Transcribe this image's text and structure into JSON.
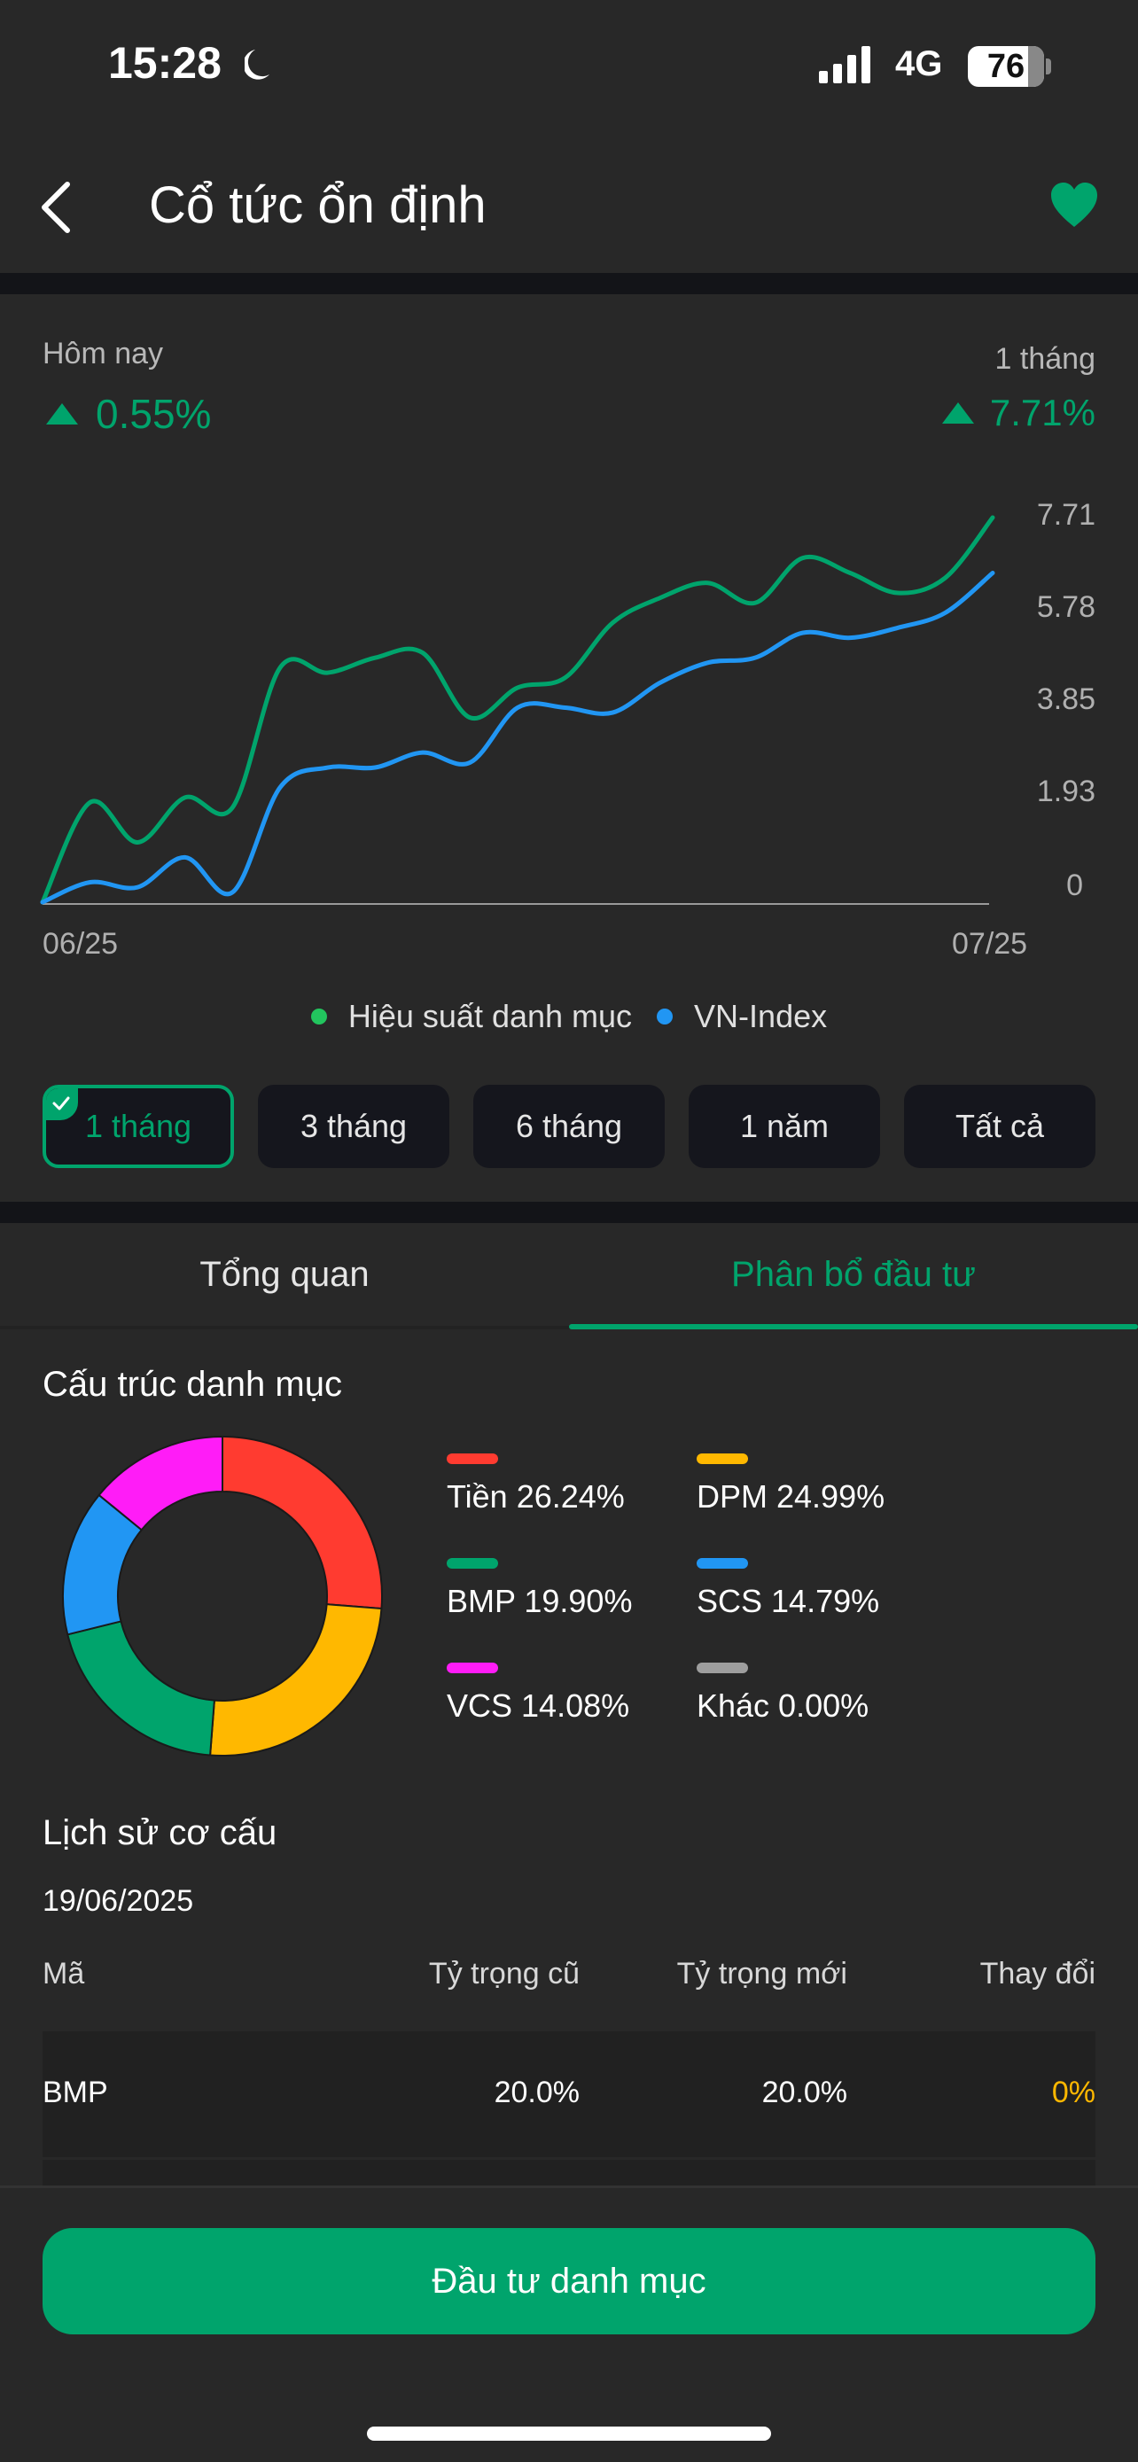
{
  "status_bar": {
    "time": "15:28",
    "network": "4G",
    "battery": "76"
  },
  "header": {
    "title": "Cổ tức ổn định",
    "back_icon": "chevron-left-icon",
    "favorite_icon": "heart-icon"
  },
  "performance": {
    "today_label": "Hôm nay",
    "today_value": "0.55%",
    "period_label": "1 tháng",
    "period_value": "7.71%",
    "up_color": "#00a46c"
  },
  "chart_data": {
    "type": "line",
    "title": "",
    "xlabel": "",
    "ylabel": "",
    "x_tick_labels": [
      "06/25",
      "07/25"
    ],
    "y_tick_labels": [
      "7.71",
      "5.78",
      "3.85",
      "1.93",
      "0"
    ],
    "ylim": [
      0,
      7.71
    ],
    "grid": false,
    "legend_position": "bottom",
    "x": [
      0,
      1,
      2,
      3,
      4,
      5,
      6,
      7,
      8,
      9,
      10,
      11,
      12,
      13,
      14,
      15,
      16,
      17,
      18,
      19,
      20
    ],
    "series": [
      {
        "name": "Hiệu suất danh mục",
        "color": "#00a46c",
        "values": [
          0,
          2.0,
          1.2,
          2.1,
          1.9,
          4.7,
          4.6,
          4.9,
          5.0,
          3.7,
          4.3,
          4.5,
          5.6,
          6.1,
          6.4,
          6.0,
          6.9,
          6.6,
          6.2,
          6.5,
          7.71
        ]
      },
      {
        "name": "VN-Index",
        "color": "#2196f3",
        "values": [
          0,
          0.4,
          0.3,
          0.9,
          0.2,
          2.3,
          2.7,
          2.7,
          3.0,
          2.8,
          3.9,
          3.9,
          3.8,
          4.4,
          4.8,
          4.9,
          5.4,
          5.3,
          5.5,
          5.8,
          6.6
        ]
      }
    ]
  },
  "chart_axis": {
    "y_labels": [
      "7.71",
      "5.78",
      "3.85",
      "1.93",
      "0"
    ],
    "x_start": "06/25",
    "x_end": "07/25"
  },
  "legend": {
    "items": [
      {
        "label": "Hiệu suất danh mục",
        "color": "#22c55e"
      },
      {
        "label": "VN-Index",
        "color": "#2196f3"
      }
    ]
  },
  "periods": [
    {
      "label": "1 tháng",
      "active": true
    },
    {
      "label": "3 tháng",
      "active": false
    },
    {
      "label": "6 tháng",
      "active": false
    },
    {
      "label": "1 năm",
      "active": false
    },
    {
      "label": "Tất cả",
      "active": false
    }
  ],
  "tabs": [
    {
      "label": "Tổng quan",
      "active": false
    },
    {
      "label": "Phân bổ đầu tư",
      "active": true
    }
  ],
  "allocation": {
    "title": "Cấu trúc danh mục",
    "items": [
      {
        "name": "Tiền",
        "percent": "26.24%",
        "value": 26.24,
        "color": "#ff3b30",
        "text": "Tiền 26.24%"
      },
      {
        "name": "DPM",
        "percent": "24.99%",
        "value": 24.99,
        "color": "#ffb800",
        "text": "DPM 24.99%"
      },
      {
        "name": "BMP",
        "percent": "19.90%",
        "value": 19.9,
        "color": "#00a46c",
        "text": "BMP 19.90%"
      },
      {
        "name": "SCS",
        "percent": "14.79%",
        "value": 14.79,
        "color": "#2196f3",
        "text": "SCS 14.79%"
      },
      {
        "name": "VCS",
        "percent": "14.08%",
        "value": 14.08,
        "color": "#ff1cf7",
        "text": "VCS 14.08%"
      },
      {
        "name": "Khác",
        "percent": "0.00%",
        "value": 0,
        "color": "#9e9e9e",
        "text": "Khác 0.00%"
      }
    ]
  },
  "history": {
    "title": "Lịch sử cơ cấu",
    "date": "19/06/2025",
    "columns": [
      "Mã",
      "Tỷ trọng cũ",
      "Tỷ trọng mới",
      "Thay đổi"
    ],
    "rows": [
      {
        "code": "BMP",
        "old": "20.0%",
        "new": "20.0%",
        "change": "0%",
        "change_color": "#ffb800"
      }
    ]
  },
  "cta": {
    "label": "Đầu tư danh mục",
    "color": "#00a46c"
  }
}
